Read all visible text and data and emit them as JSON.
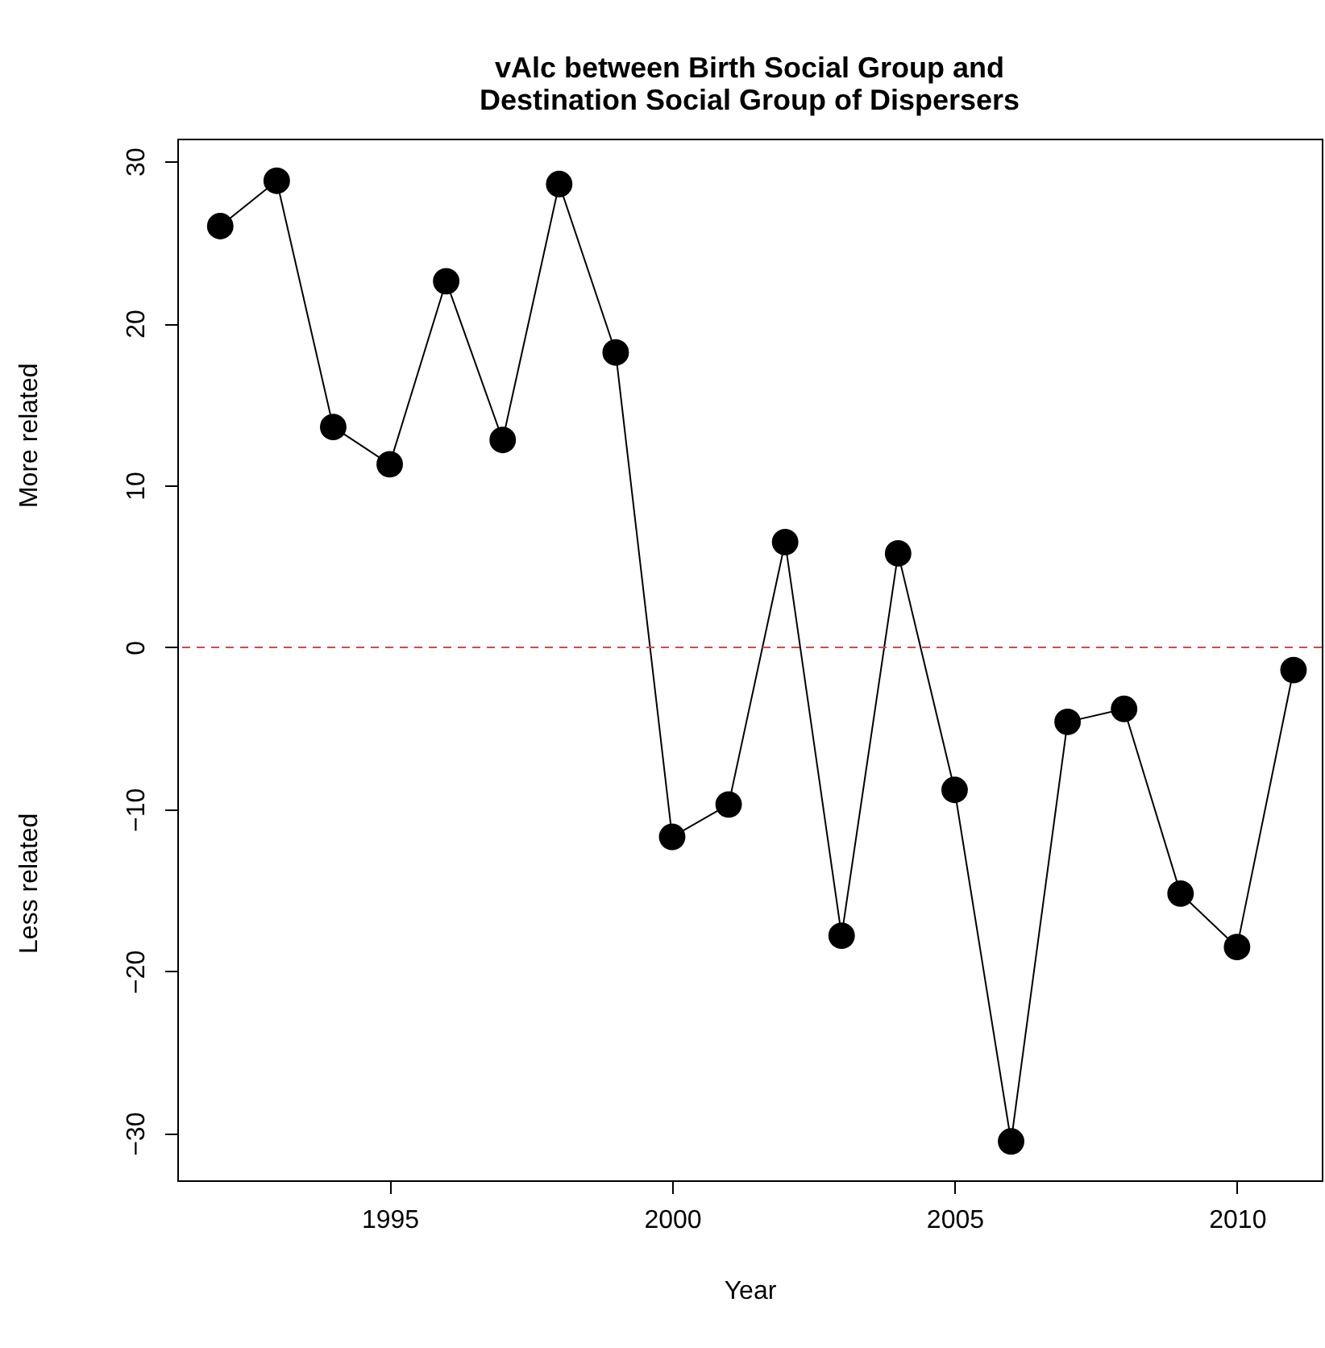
{
  "chart_data": {
    "type": "line",
    "title": [
      "vAlc between Birth Social Group and",
      "Destination Social Group of Dispersers"
    ],
    "xlabel": "Year",
    "annotations": [
      "More related",
      "Less related"
    ],
    "x": [
      1992,
      1993,
      1994,
      1995,
      1996,
      1997,
      1998,
      1999,
      2000,
      2001,
      2002,
      2003,
      2004,
      2005,
      2006,
      2007,
      2008,
      2009,
      2010,
      2011
    ],
    "series": [
      {
        "color": "#000000",
        "values": [
          26.0,
          28.8,
          13.6,
          11.3,
          22.6,
          12.8,
          28.6,
          18.2,
          -11.7,
          -9.7,
          6.5,
          -17.8,
          5.8,
          -8.8,
          -30.5,
          -4.6,
          -3.8,
          -15.2,
          -18.5,
          -1.4
        ]
      }
    ],
    "xlim": [
      1991.24,
      2011.5
    ],
    "xticks": [
      1995,
      2000,
      2005,
      2010
    ],
    "ylim": [
      -32.9,
      31.4
    ],
    "yticks": [
      -30,
      -20,
      -10,
      0,
      10,
      20,
      30
    ],
    "ref_lines": [
      {
        "axis": "y",
        "value": 0,
        "color": "#d04848",
        "line_style": "dashed"
      }
    ],
    "grid": false,
    "marker": "circle",
    "line_style": "solid"
  }
}
